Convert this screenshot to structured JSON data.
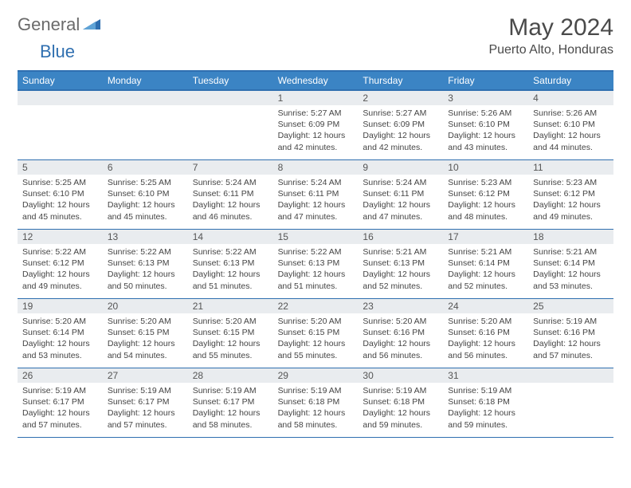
{
  "logo": {
    "word1": "General",
    "word2": "Blue"
  },
  "title": "May 2024",
  "location": "Puerto Alto, Honduras",
  "colors": {
    "header_bg": "#3b84c4",
    "header_border": "#2f6fb0",
    "daynum_bg": "#e9ecef",
    "text": "#444444",
    "logo_gray": "#6a6a6a",
    "logo_blue": "#2f6fb0"
  },
  "day_names": [
    "Sunday",
    "Monday",
    "Tuesday",
    "Wednesday",
    "Thursday",
    "Friday",
    "Saturday"
  ],
  "weeks": [
    [
      {
        "empty": true
      },
      {
        "empty": true
      },
      {
        "empty": true
      },
      {
        "num": "1",
        "sunrise": "Sunrise: 5:27 AM",
        "sunset": "Sunset: 6:09 PM",
        "day1": "Daylight: 12 hours",
        "day2": "and 42 minutes."
      },
      {
        "num": "2",
        "sunrise": "Sunrise: 5:27 AM",
        "sunset": "Sunset: 6:09 PM",
        "day1": "Daylight: 12 hours",
        "day2": "and 42 minutes."
      },
      {
        "num": "3",
        "sunrise": "Sunrise: 5:26 AM",
        "sunset": "Sunset: 6:10 PM",
        "day1": "Daylight: 12 hours",
        "day2": "and 43 minutes."
      },
      {
        "num": "4",
        "sunrise": "Sunrise: 5:26 AM",
        "sunset": "Sunset: 6:10 PM",
        "day1": "Daylight: 12 hours",
        "day2": "and 44 minutes."
      }
    ],
    [
      {
        "num": "5",
        "sunrise": "Sunrise: 5:25 AM",
        "sunset": "Sunset: 6:10 PM",
        "day1": "Daylight: 12 hours",
        "day2": "and 45 minutes."
      },
      {
        "num": "6",
        "sunrise": "Sunrise: 5:25 AM",
        "sunset": "Sunset: 6:10 PM",
        "day1": "Daylight: 12 hours",
        "day2": "and 45 minutes."
      },
      {
        "num": "7",
        "sunrise": "Sunrise: 5:24 AM",
        "sunset": "Sunset: 6:11 PM",
        "day1": "Daylight: 12 hours",
        "day2": "and 46 minutes."
      },
      {
        "num": "8",
        "sunrise": "Sunrise: 5:24 AM",
        "sunset": "Sunset: 6:11 PM",
        "day1": "Daylight: 12 hours",
        "day2": "and 47 minutes."
      },
      {
        "num": "9",
        "sunrise": "Sunrise: 5:24 AM",
        "sunset": "Sunset: 6:11 PM",
        "day1": "Daylight: 12 hours",
        "day2": "and 47 minutes."
      },
      {
        "num": "10",
        "sunrise": "Sunrise: 5:23 AM",
        "sunset": "Sunset: 6:12 PM",
        "day1": "Daylight: 12 hours",
        "day2": "and 48 minutes."
      },
      {
        "num": "11",
        "sunrise": "Sunrise: 5:23 AM",
        "sunset": "Sunset: 6:12 PM",
        "day1": "Daylight: 12 hours",
        "day2": "and 49 minutes."
      }
    ],
    [
      {
        "num": "12",
        "sunrise": "Sunrise: 5:22 AM",
        "sunset": "Sunset: 6:12 PM",
        "day1": "Daylight: 12 hours",
        "day2": "and 49 minutes."
      },
      {
        "num": "13",
        "sunrise": "Sunrise: 5:22 AM",
        "sunset": "Sunset: 6:13 PM",
        "day1": "Daylight: 12 hours",
        "day2": "and 50 minutes."
      },
      {
        "num": "14",
        "sunrise": "Sunrise: 5:22 AM",
        "sunset": "Sunset: 6:13 PM",
        "day1": "Daylight: 12 hours",
        "day2": "and 51 minutes."
      },
      {
        "num": "15",
        "sunrise": "Sunrise: 5:22 AM",
        "sunset": "Sunset: 6:13 PM",
        "day1": "Daylight: 12 hours",
        "day2": "and 51 minutes."
      },
      {
        "num": "16",
        "sunrise": "Sunrise: 5:21 AM",
        "sunset": "Sunset: 6:13 PM",
        "day1": "Daylight: 12 hours",
        "day2": "and 52 minutes."
      },
      {
        "num": "17",
        "sunrise": "Sunrise: 5:21 AM",
        "sunset": "Sunset: 6:14 PM",
        "day1": "Daylight: 12 hours",
        "day2": "and 52 minutes."
      },
      {
        "num": "18",
        "sunrise": "Sunrise: 5:21 AM",
        "sunset": "Sunset: 6:14 PM",
        "day1": "Daylight: 12 hours",
        "day2": "and 53 minutes."
      }
    ],
    [
      {
        "num": "19",
        "sunrise": "Sunrise: 5:20 AM",
        "sunset": "Sunset: 6:14 PM",
        "day1": "Daylight: 12 hours",
        "day2": "and 53 minutes."
      },
      {
        "num": "20",
        "sunrise": "Sunrise: 5:20 AM",
        "sunset": "Sunset: 6:15 PM",
        "day1": "Daylight: 12 hours",
        "day2": "and 54 minutes."
      },
      {
        "num": "21",
        "sunrise": "Sunrise: 5:20 AM",
        "sunset": "Sunset: 6:15 PM",
        "day1": "Daylight: 12 hours",
        "day2": "and 55 minutes."
      },
      {
        "num": "22",
        "sunrise": "Sunrise: 5:20 AM",
        "sunset": "Sunset: 6:15 PM",
        "day1": "Daylight: 12 hours",
        "day2": "and 55 minutes."
      },
      {
        "num": "23",
        "sunrise": "Sunrise: 5:20 AM",
        "sunset": "Sunset: 6:16 PM",
        "day1": "Daylight: 12 hours",
        "day2": "and 56 minutes."
      },
      {
        "num": "24",
        "sunrise": "Sunrise: 5:20 AM",
        "sunset": "Sunset: 6:16 PM",
        "day1": "Daylight: 12 hours",
        "day2": "and 56 minutes."
      },
      {
        "num": "25",
        "sunrise": "Sunrise: 5:19 AM",
        "sunset": "Sunset: 6:16 PM",
        "day1": "Daylight: 12 hours",
        "day2": "and 57 minutes."
      }
    ],
    [
      {
        "num": "26",
        "sunrise": "Sunrise: 5:19 AM",
        "sunset": "Sunset: 6:17 PM",
        "day1": "Daylight: 12 hours",
        "day2": "and 57 minutes."
      },
      {
        "num": "27",
        "sunrise": "Sunrise: 5:19 AM",
        "sunset": "Sunset: 6:17 PM",
        "day1": "Daylight: 12 hours",
        "day2": "and 57 minutes."
      },
      {
        "num": "28",
        "sunrise": "Sunrise: 5:19 AM",
        "sunset": "Sunset: 6:17 PM",
        "day1": "Daylight: 12 hours",
        "day2": "and 58 minutes."
      },
      {
        "num": "29",
        "sunrise": "Sunrise: 5:19 AM",
        "sunset": "Sunset: 6:18 PM",
        "day1": "Daylight: 12 hours",
        "day2": "and 58 minutes."
      },
      {
        "num": "30",
        "sunrise": "Sunrise: 5:19 AM",
        "sunset": "Sunset: 6:18 PM",
        "day1": "Daylight: 12 hours",
        "day2": "and 59 minutes."
      },
      {
        "num": "31",
        "sunrise": "Sunrise: 5:19 AM",
        "sunset": "Sunset: 6:18 PM",
        "day1": "Daylight: 12 hours",
        "day2": "and 59 minutes."
      },
      {
        "empty": true
      }
    ]
  ]
}
